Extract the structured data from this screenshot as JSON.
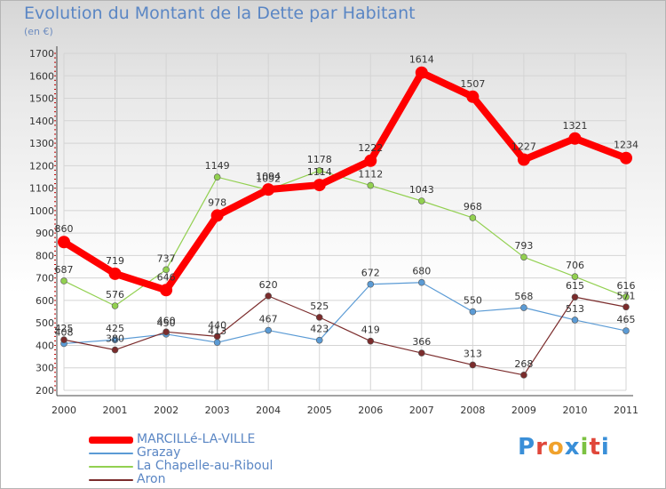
{
  "header": {
    "title": "Evolution du Montant de la Dette par Habitant",
    "unit": "(en €)"
  },
  "logo": {
    "text": "Proxiti",
    "letter_colors": [
      "#3a8fd8",
      "#e0473a",
      "#f0a22c",
      "#3a8fd8",
      "#7cc242",
      "#e0473a",
      "#3a8fd8"
    ]
  },
  "chart_data": {
    "type": "line",
    "title": "Evolution du Montant de la Dette par Habitant",
    "ylabel": "(en €)",
    "x": [
      "2000",
      "2001",
      "2002",
      "2003",
      "2004",
      "2005",
      "2006",
      "2007",
      "2008",
      "2009",
      "2010",
      "2011"
    ],
    "ylim": [
      200,
      1700
    ],
    "yticks": [
      200,
      300,
      400,
      500,
      600,
      700,
      800,
      900,
      1000,
      1100,
      1200,
      1300,
      1400,
      1500,
      1600,
      1700
    ],
    "grid": true,
    "legend_position": "bottom-left",
    "series": [
      {
        "name": "MARCILLé-LA-VILLE",
        "color": "#ff0000",
        "values": [
          860,
          719,
          646,
          978,
          1094,
          1114,
          1222,
          1614,
          1507,
          1227,
          1321,
          1234
        ]
      },
      {
        "name": "Grazay",
        "color": "#5b9bd5",
        "values": [
          408,
          425,
          450,
          413,
          467,
          423,
          672,
          680,
          550,
          568,
          513,
          465
        ]
      },
      {
        "name": "La Chapelle-au-Riboul",
        "color": "#92d050",
        "values": [
          687,
          576,
          737,
          1149,
          1092,
          1178,
          1112,
          1043,
          968,
          793,
          706,
          616
        ]
      },
      {
        "name": "Aron",
        "color": "#7b2c2c",
        "values": [
          425,
          380,
          460,
          440,
          620,
          525,
          419,
          366,
          313,
          268,
          615,
          571
        ]
      }
    ]
  }
}
